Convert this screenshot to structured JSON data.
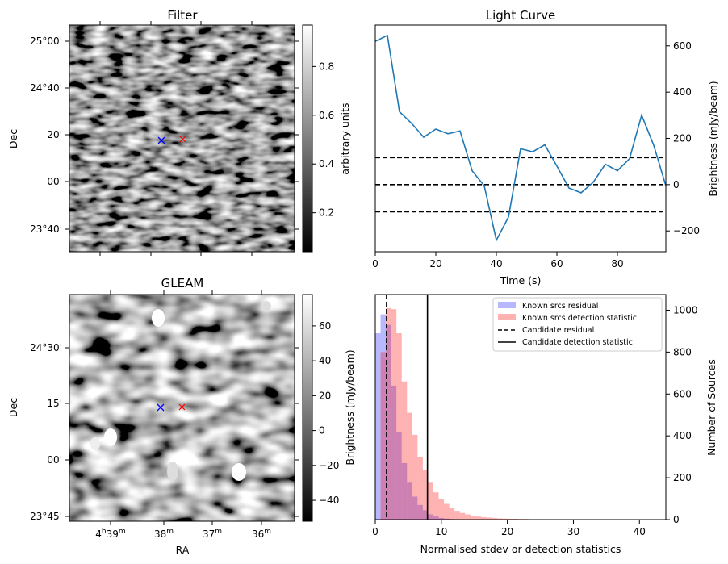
{
  "figure": {
    "background": "#ffffff"
  },
  "chart_data": [
    {
      "id": "filter",
      "type": "heatmap",
      "title": "Filter",
      "xlabel": "",
      "ylabel": "Dec",
      "y_tick_labels": [
        "25°00'",
        "24°40'",
        "20'",
        "00'",
        "23°40'"
      ],
      "colorbar": {
        "label": "arbitrary units",
        "ticks": [
          "0.2",
          "0.4",
          "0.6",
          "0.8"
        ],
        "range": [
          0.04,
          0.97
        ],
        "cmap": "gray"
      },
      "markers": [
        {
          "name": "candidate-position",
          "symbol": "x",
          "color": "#0000ff"
        },
        {
          "name": "reference-position",
          "symbol": "x",
          "color": "#ff0000"
        }
      ]
    },
    {
      "id": "lightcurve",
      "type": "line",
      "title": "Light Curve",
      "xlabel": "Time (s)",
      "ylabel": "Brightness (mJy/beam)",
      "xlim": [
        0,
        96
      ],
      "ylim": [
        -290,
        690
      ],
      "x_ticks": [
        0,
        20,
        40,
        60,
        80
      ],
      "y_ticks": [
        -200,
        0,
        200,
        400,
        600
      ],
      "series": [
        {
          "name": "light curve",
          "color": "#1f77b4",
          "x": [
            0,
            4,
            8,
            12,
            16,
            20,
            24,
            28,
            32,
            36,
            40,
            44,
            48,
            52,
            56,
            60,
            64,
            68,
            72,
            76,
            80,
            84,
            88,
            92,
            96
          ],
          "y": [
            620,
            645,
            315,
            265,
            205,
            240,
            220,
            232,
            60,
            -5,
            -240,
            -140,
            155,
            142,
            172,
            80,
            -15,
            -35,
            10,
            88,
            60,
            112,
            300,
            170,
            -5
          ]
        }
      ],
      "hlines": [
        {
          "y": 117,
          "style": "dashed",
          "color": "#000000"
        },
        {
          "y": 0,
          "style": "dashed",
          "color": "#000000"
        },
        {
          "y": -117,
          "style": "dashed",
          "color": "#000000"
        }
      ]
    },
    {
      "id": "gleam",
      "type": "heatmap",
      "title": "GLEAM",
      "xlabel": "RA",
      "ylabel": "Dec",
      "x_tick_labels": [
        {
          "h": "4",
          "h_unit": "h",
          "m": "39",
          "m_unit": "m"
        },
        {
          "h": "",
          "h_unit": "",
          "m": "38",
          "m_unit": "m"
        },
        {
          "h": "",
          "h_unit": "",
          "m": "37",
          "m_unit": "m"
        },
        {
          "h": "",
          "h_unit": "",
          "m": "36",
          "m_unit": "m"
        }
      ],
      "y_tick_labels": [
        "24°30'",
        "15'",
        "00'",
        "23°45'"
      ],
      "colorbar": {
        "label": "Brightness (mJy/beam)",
        "ticks": [
          "60",
          "40",
          "20",
          "0",
          "−20",
          "−40"
        ],
        "range": [
          -52,
          78
        ],
        "cmap": "gray"
      },
      "markers": [
        {
          "name": "candidate-position",
          "symbol": "x",
          "color": "#0000ff"
        },
        {
          "name": "reference-position",
          "symbol": "x",
          "color": "#ff0000"
        }
      ]
    },
    {
      "id": "histogram",
      "type": "bar",
      "title": "",
      "xlabel": "Normalised stdev or detection statistics",
      "ylabel": "Number of Sources",
      "xlim": [
        0,
        44
      ],
      "ylim": [
        0,
        1075
      ],
      "x_ticks": [
        0,
        10,
        20,
        30,
        40
      ],
      "y_ticks": [
        0,
        200,
        400,
        600,
        800,
        1000
      ],
      "bin_width": 0.8,
      "series": [
        {
          "name": "Known srcs residual",
          "color": "#0000ff",
          "opacity": 0.28,
          "bins": [
            [
              0.0,
              890
            ],
            [
              0.8,
              980
            ],
            [
              1.6,
              930
            ],
            [
              2.4,
              640
            ],
            [
              3.2,
              420
            ],
            [
              4.0,
              270
            ],
            [
              4.8,
              180
            ],
            [
              5.6,
              110
            ],
            [
              6.4,
              70
            ],
            [
              7.2,
              45
            ],
            [
              8.0,
              25
            ],
            [
              8.8,
              15
            ],
            [
              9.6,
              8
            ],
            [
              10.4,
              5
            ],
            [
              11.2,
              3
            ],
            [
              12.0,
              2
            ]
          ]
        },
        {
          "name": "Known srcs detection statistic",
          "color": "#ff0000",
          "opacity": 0.3,
          "bins": [
            [
              0.0,
              0
            ],
            [
              0.8,
              800
            ],
            [
              1.6,
              1010
            ],
            [
              2.4,
              1005
            ],
            [
              3.2,
              890
            ],
            [
              4.0,
              660
            ],
            [
              4.8,
              510
            ],
            [
              5.6,
              405
            ],
            [
              6.4,
              300
            ],
            [
              7.2,
              235
            ],
            [
              8.0,
              180
            ],
            [
              8.8,
              130
            ],
            [
              9.6,
              100
            ],
            [
              10.4,
              75
            ],
            [
              11.2,
              55
            ],
            [
              12.0,
              42
            ],
            [
              12.8,
              32
            ],
            [
              13.6,
              25
            ],
            [
              14.4,
              19
            ],
            [
              15.2,
              15
            ],
            [
              16.0,
              12
            ],
            [
              16.8,
              10
            ],
            [
              17.6,
              8
            ],
            [
              18.4,
              6
            ],
            [
              19.2,
              5
            ],
            [
              20.0,
              4
            ],
            [
              20.8,
              4
            ],
            [
              21.6,
              3
            ],
            [
              22.4,
              3
            ],
            [
              23.2,
              2
            ],
            [
              24.0,
              2
            ],
            [
              24.8,
              2
            ],
            [
              25.6,
              2
            ],
            [
              26.4,
              1
            ],
            [
              27.2,
              1
            ],
            [
              28.0,
              1
            ],
            [
              28.8,
              1
            ],
            [
              29.6,
              1
            ],
            [
              30.4,
              1
            ],
            [
              31.2,
              1
            ],
            [
              32.0,
              1
            ],
            [
              36.0,
              1
            ],
            [
              41.6,
              1
            ]
          ]
        }
      ],
      "vlines": [
        {
          "name": "Candidate residual",
          "x": 1.7,
          "style": "dashed",
          "color": "#000000"
        },
        {
          "name": "Candidate detection statistic",
          "x": 7.9,
          "style": "solid",
          "color": "#000000"
        }
      ],
      "legend": {
        "placement": "top-right",
        "entries": [
          {
            "label": "Known srcs residual",
            "kind": "patch",
            "color": "#0000ff",
            "opacity": 0.28
          },
          {
            "label": "Known srcs detection statistic",
            "kind": "patch",
            "color": "#ff0000",
            "opacity": 0.3
          },
          {
            "label": "Candidate residual",
            "kind": "dashed",
            "color": "#000000"
          },
          {
            "label": "Candidate detection statistic",
            "kind": "solid",
            "color": "#000000"
          }
        ]
      }
    }
  ]
}
